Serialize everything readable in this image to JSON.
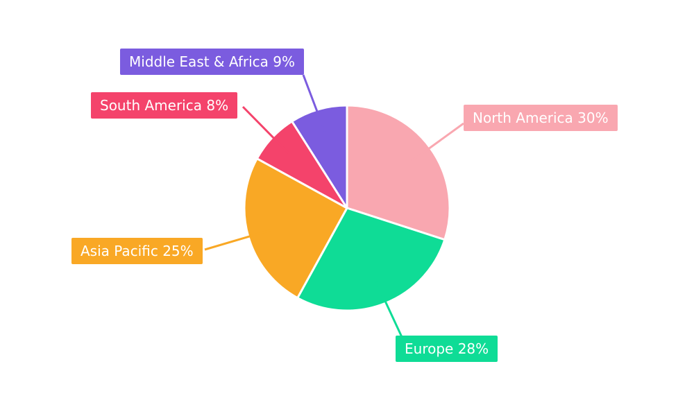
{
  "chart_data": {
    "type": "pie",
    "title": "",
    "background": "#ffffff",
    "start_angle": "12-oclock",
    "direction": "clockwise",
    "total": 100,
    "unit": "%",
    "legend_position": "callout-labels",
    "slices": [
      {
        "label": "North America",
        "value": 30,
        "color": "#F9A7B0",
        "display": "North America 30%"
      },
      {
        "label": "Europe",
        "value": 28,
        "color": "#0FDC96",
        "display": "Europe 28%"
      },
      {
        "label": "Asia Pacific",
        "value": 25,
        "color": "#F9A825",
        "display": "Asia Pacific 25%"
      },
      {
        "label": "South America",
        "value": 8,
        "color": "#F4436B",
        "display": "South America 8%"
      },
      {
        "label": "Middle East & Africa",
        "value": 9,
        "color": "#7B5CDF",
        "display": "Middle East & Africa 9%"
      }
    ]
  }
}
